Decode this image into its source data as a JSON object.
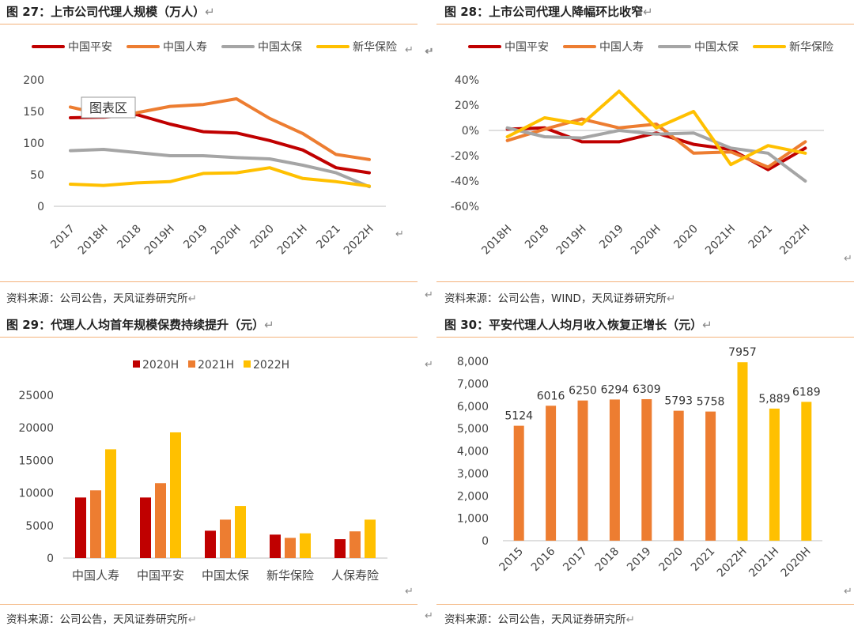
{
  "return_mark": "↵",
  "colors": {
    "red": "#c00000",
    "orange": "#ed7d31",
    "gray": "#a5a5a5",
    "yellow": "#ffc000"
  },
  "chart_data": [
    {
      "id": "c27",
      "type": "line",
      "title": "图 27：上市公司代理人规模（万人）",
      "source": "资料来源：公司公告，天风证券研究所",
      "categories": [
        "2017",
        "2018H",
        "2018",
        "2019H",
        "2019",
        "2020H",
        "2020",
        "2021H",
        "2021",
        "2022H"
      ],
      "series": [
        {
          "name": "中国平安",
          "color": "#c00000",
          "values": [
            140,
            141,
            145,
            130,
            118,
            116,
            104,
            89,
            61,
            53
          ]
        },
        {
          "name": "中国人寿",
          "color": "#ed7d31",
          "values": [
            157,
            145,
            148,
            158,
            161,
            170,
            139,
            115,
            82,
            74
          ]
        },
        {
          "name": "中国太保",
          "color": "#a5a5a5",
          "values": [
            88,
            90,
            85,
            80,
            80,
            77,
            75,
            65,
            53,
            31
          ]
        },
        {
          "name": "新华保险",
          "color": "#ffc000",
          "values": [
            35,
            33,
            37,
            39,
            52,
            53,
            61,
            44,
            39,
            32
          ]
        }
      ],
      "yticks": [
        "200",
        "150",
        "100",
        "50",
        "0"
      ],
      "ylim": [
        0,
        200
      ],
      "tooltip": "图表区"
    },
    {
      "id": "c28",
      "type": "line",
      "title": "图 28：上市公司代理人降幅环比收窄",
      "source": "资料来源：公司公告，WIND，天风证券研究所",
      "categories": [
        "2018H",
        "2018",
        "2019H",
        "2019",
        "2020H",
        "2020",
        "2021H",
        "2021",
        "2022H"
      ],
      "series": [
        {
          "name": "中国平安",
          "color": "#c00000",
          "values": [
            1,
            2,
            -9,
            -9,
            -2,
            -11,
            -15,
            -31,
            -14
          ]
        },
        {
          "name": "中国人寿",
          "color": "#ed7d31",
          "values": [
            -8,
            1,
            9,
            2,
            5,
            -18,
            -17,
            -29,
            -9
          ]
        },
        {
          "name": "中国太保",
          "color": "#a5a5a5",
          "values": [
            2,
            -5,
            -6,
            0,
            -3,
            -2,
            -14,
            -18,
            -40
          ]
        },
        {
          "name": "新华保险",
          "color": "#ffc000",
          "values": [
            -5,
            10,
            5,
            31,
            2,
            15,
            -27,
            -12,
            -18
          ]
        }
      ],
      "yticks": [
        "40%",
        "20%",
        "0%",
        "-20%",
        "-40%",
        "-60%"
      ],
      "ylim": [
        -60,
        40
      ]
    },
    {
      "id": "c29",
      "type": "bar",
      "title": "图 29：代理人人均首年规模保费持续提升（元）",
      "source": "资料来源：公司公告，天风证券研究所",
      "categories": [
        "中国人寿",
        "中国平安",
        "中国太保",
        "新华保险",
        "人保寿险"
      ],
      "series": [
        {
          "name": "2020H",
          "color": "#c00000",
          "values": [
            9300,
            9300,
            4200,
            3600,
            2900
          ]
        },
        {
          "name": "2021H",
          "color": "#ed7d31",
          "values": [
            10400,
            11500,
            5900,
            3100,
            4100
          ]
        },
        {
          "name": "2022H",
          "color": "#ffc000",
          "values": [
            16700,
            19300,
            8000,
            3800,
            5900
          ]
        }
      ],
      "yticks": [
        "25000",
        "20000",
        "15000",
        "10000",
        "5000",
        "0"
      ],
      "ylim": [
        0,
        25000
      ]
    },
    {
      "id": "c30",
      "type": "bar",
      "title": "图 30：平安代理人人均月收入恢复正增长（元）",
      "source": "资料来源：公司公告，天风证券研究所",
      "categories": [
        "2015",
        "2016",
        "2017",
        "2018",
        "2019",
        "2020",
        "2021",
        "2022H",
        "2021H",
        "2020H"
      ],
      "values": [
        5124,
        6016,
        6250,
        6294,
        6309,
        5793,
        5758,
        7957,
        5889,
        6189
      ],
      "labels": [
        "5124",
        "6016",
        "6250",
        "6294",
        "6309",
        "5793",
        "5758",
        "7957",
        "5,889",
        "6189"
      ],
      "bar_colors": [
        "#ed7d31",
        "#ed7d31",
        "#ed7d31",
        "#ed7d31",
        "#ed7d31",
        "#ed7d31",
        "#ed7d31",
        "#ffc000",
        "#ffc000",
        "#ffc000"
      ],
      "yticks": [
        "8,000",
        "7,000",
        "6,000",
        "5,000",
        "4,000",
        "3,000",
        "2,000",
        "1,000",
        "0"
      ],
      "ylim": [
        0,
        8000
      ]
    }
  ]
}
